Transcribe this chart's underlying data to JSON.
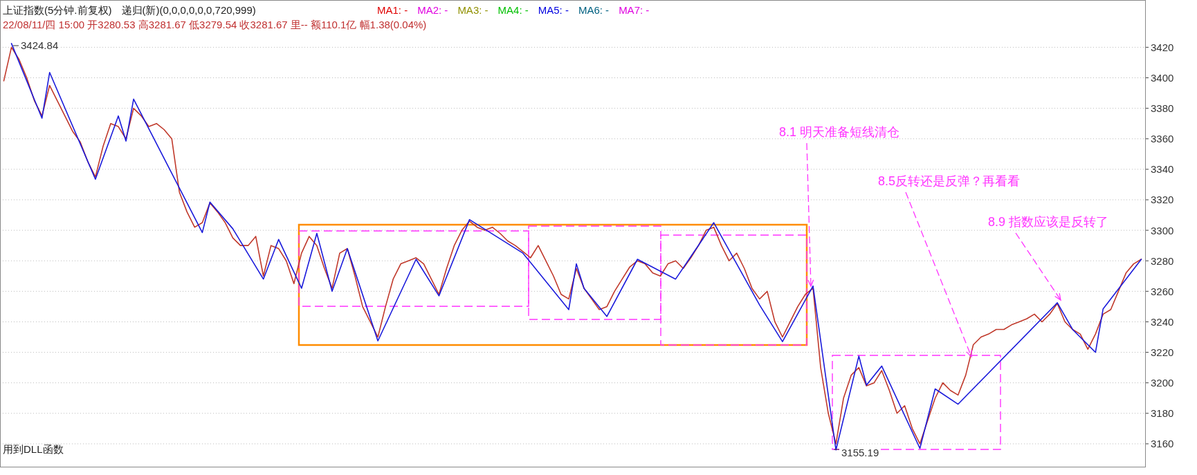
{
  "chart_data": {
    "type": "line",
    "title": "上证指数(5分钟.前复权)",
    "subtitle": "22/08/11/四 15:00 开3280.53 高3281.67 低3279.54 收3281.67 里-- 额110.1亿 幅1.38(0.04%)",
    "categories": [
      null,
      null,
      null,
      null,
      null,
      null,
      null,
      null,
      null,
      null,
      null,
      null,
      null,
      null,
      null,
      null,
      null,
      null,
      null,
      null,
      null,
      null,
      null,
      null,
      null,
      null,
      null,
      null,
      null,
      null,
      null,
      null,
      null,
      null,
      null,
      null,
      null,
      null,
      null,
      null,
      null,
      null,
      null,
      null,
      null,
      null,
      null,
      null,
      null,
      null,
      null,
      null,
      null,
      null,
      null,
      null,
      null,
      null,
      null,
      null,
      null,
      null,
      null,
      null,
      null,
      null,
      null,
      null,
      null,
      null,
      null,
      null,
      null,
      null,
      null,
      null,
      null,
      null,
      null,
      null,
      null,
      null,
      null,
      null,
      null,
      null,
      null,
      null,
      null,
      null,
      null,
      null,
      null,
      null,
      null,
      null,
      null,
      null,
      null,
      null,
      null,
      null,
      null,
      null,
      null,
      null,
      null,
      null,
      null,
      null,
      null,
      null,
      null,
      null,
      null,
      null,
      null,
      null,
      null,
      null,
      null,
      null,
      null,
      null,
      null,
      null,
      null,
      null,
      null,
      null,
      null,
      null,
      null,
      null,
      null,
      null,
      null,
      null,
      null,
      null,
      null,
      null,
      null,
      null,
      null,
      null,
      null,
      null,
      null,
      null
    ],
    "series": [
      {
        "color": "#c0392b",
        "values": [
          3398,
          3420,
          3412,
          3400,
          3385,
          3375,
          3395,
          3385,
          3375,
          3365,
          3358,
          3345,
          3335,
          3355,
          3370,
          3368,
          3360,
          3380,
          3375,
          3368,
          3370,
          3366,
          3360,
          3325,
          3312,
          3302,
          3305,
          3318,
          3312,
          3305,
          3295,
          3290,
          3290,
          3296,
          3270,
          3290,
          3288,
          3280,
          3265,
          3285,
          3296,
          3290,
          3275,
          3262,
          3285,
          3288,
          3270,
          3250,
          3240,
          3230,
          3250,
          3268,
          3278,
          3280,
          3282,
          3278,
          3268,
          3258,
          3275,
          3290,
          3300,
          3306,
          3302,
          3300,
          3302,
          3298,
          3293,
          3290,
          3286,
          3282,
          3290,
          3280,
          3270,
          3258,
          3255,
          3275,
          3262,
          3255,
          3248,
          3250,
          3260,
          3268,
          3276,
          3280,
          3278,
          3272,
          3270,
          3278,
          3280,
          3275,
          3282,
          3290,
          3300,
          3302,
          3290,
          3280,
          3285,
          3275,
          3262,
          3255,
          3260,
          3240,
          3230,
          3240,
          3250,
          3258,
          3262,
          3210,
          3180,
          3160,
          3190,
          3205,
          3210,
          3198,
          3200,
          3208,
          3195,
          3180,
          3185,
          3170,
          3160,
          3175,
          3190,
          3200,
          3195,
          3192,
          3205,
          3225,
          3230,
          3232,
          3235,
          3235,
          3238,
          3240,
          3242,
          3245,
          3240,
          3245,
          3252,
          3240,
          3235,
          3232,
          3222,
          3232,
          3245,
          3248,
          3260,
          3272,
          3278,
          3281
        ]
      },
      {
        "color": "#1a1adb",
        "values": [
          null,
          3422.5,
          null,
          null,
          null,
          3373.5,
          3403.5,
          null,
          null,
          null,
          null,
          null,
          3333.5,
          null,
          null,
          3375,
          3358.5,
          3386,
          null,
          null,
          null,
          null,
          null,
          null,
          null,
          null,
          3298.5,
          3318.5,
          null,
          null,
          3301,
          null,
          null,
          null,
          3268,
          null,
          3294,
          null,
          null,
          3262,
          null,
          3298,
          null,
          3260,
          null,
          3288,
          null,
          null,
          null,
          3227.5,
          null,
          null,
          null,
          null,
          3281,
          null,
          null,
          3257,
          null,
          null,
          null,
          3307,
          null,
          null,
          null,
          null,
          null,
          null,
          3285,
          null,
          null,
          null,
          null,
          null,
          3248,
          3278,
          3262,
          null,
          null,
          3243.5,
          null,
          null,
          null,
          3281,
          null,
          null,
          null,
          null,
          3268,
          null,
          null,
          null,
          null,
          3305,
          null,
          null,
          null,
          null,
          null,
          3251,
          null,
          null,
          3227,
          null,
          null,
          null,
          3263.5,
          null,
          null,
          3156,
          null,
          null,
          3217.5,
          3198.5,
          null,
          3211,
          null,
          null,
          null,
          null,
          3157,
          null,
          3196,
          null,
          null,
          3186,
          null,
          null,
          null,
          null,
          null,
          null,
          null,
          null,
          null,
          null,
          null,
          null,
          3252.5,
          null,
          3235,
          null,
          null,
          3220,
          3248.5,
          null,
          null,
          null,
          null,
          3281
        ]
      }
    ],
    "ylim": [
      3145,
      3451
    ],
    "yticks": [
      3160,
      3180,
      3200,
      3220,
      3240,
      3260,
      3280,
      3300,
      3320,
      3340,
      3360,
      3380,
      3400,
      3420
    ],
    "tick_labels": "y",
    "grid": "y",
    "marker": "none",
    "annotations": [
      "递归(新)(0,0,0,0,0,0,720,999)",
      "MA1: -",
      "MA2: -",
      "MA3: -",
      "MA4: -",
      "MA5: -",
      "MA6: -",
      "MA7: -",
      "用到DLL函数",
      "3424.84",
      "3155.19",
      "8.1 明天准备短线清仓",
      "8.5反转还是反弹？再看看",
      "8.9 指数应该是反转了"
    ]
  }
}
